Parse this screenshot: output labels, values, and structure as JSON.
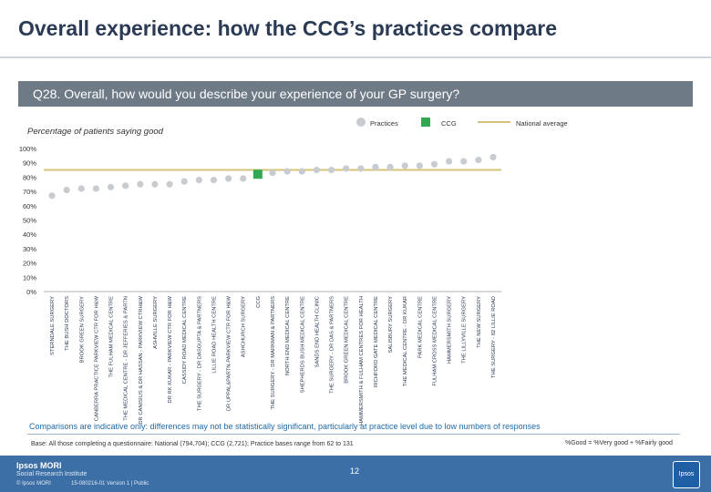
{
  "header": {
    "title": "Overall experience: how the CCG’s practices compare",
    "question": "Q28. Overall, how would you describe your experience of your GP surgery?"
  },
  "chart_data": {
    "type": "scatter",
    "subtitle": "Percentage of patients saying good",
    "ylim": [
      0,
      100
    ],
    "yticks": [
      "0%",
      "10%",
      "20%",
      "30%",
      "40%",
      "50%",
      "60%",
      "70%",
      "80%",
      "90%",
      "100%"
    ],
    "legend": {
      "practices": "Practices",
      "ccg": "CCG",
      "national": "National average"
    },
    "national_average": 85,
    "categories": [
      "STERNDALE SURGERY",
      "THE BUSH DOCTORS",
      "BROOK GREEN SURGERY",
      "CANBERRA PRACTICE PARKVIEW CTR FOR H&W",
      "THE FULHAM MEDICAL CENTRE",
      "THE MEDICAL CENTRE - DR JEFFERIES & PARTN",
      "DR CANISIUS & DR HASSAN - PARKVIEW CTRH&W",
      "ASHVILLE SURGERY",
      "DR RK KUKAR - PARKVIEW CTR FOR H&W",
      "CASSIDY ROAD MEDICAL CENTRE",
      "THE SURGERY - DR DASGUPTA & PARTNERS",
      "LILLIE ROAD HEALTH CENTRE",
      "DR UPPAL&PARTN-PARKVIEW CTR FOR H&W",
      "ASHCHURCH SURGERY",
      "CCG",
      "THE SURGERY - DR MARKMAN & PARTNERS",
      "NORTH END MEDICAL CENTRE",
      "SHEPHERDS BUSH MEDICAL CENTRE",
      "SANDS END HEALTH CLINIC",
      "THE SURGERY - DR DAS & PARTNERS",
      "BROOK GREEN MEDICAL CENTRE",
      "HAMMERSMITH & FULHAM CENTRES FOR HEALTH",
      "RICHFORD GATE MEDICAL CENTRE",
      "SALISBURY SURGERY",
      "THE MEDICAL CENTRE - DR KUKAR",
      "PARK MEDICAL CENTRE",
      "FULHAM CROSS MEDICAL CENTRE",
      "HAMMERSMITH SURGERY",
      "THE LILLYVILLE SURGERY",
      "THE NEW SURGERY",
      "THE SURGERY - 82 LILLIE ROAD"
    ],
    "values": [
      67,
      71,
      72,
      72,
      73,
      74,
      75,
      75,
      75,
      77,
      78,
      78,
      79,
      79,
      82,
      83,
      84,
      84,
      85,
      85,
      86,
      86,
      87,
      87,
      88,
      88,
      89,
      91,
      91,
      92,
      94
    ],
    "ccg_index": 14,
    "colors": {
      "practice": "#c8ccd0",
      "ccg": "#33a853",
      "national_line": "#d4c47a",
      "axis": "#999999",
      "label": "#2b3a55"
    }
  },
  "notes": {
    "disclaimer": "Comparisons are indicative only: differences may not be statistically significant, particularly at practice level due to low numbers of responses",
    "base": "Base: All those completing a questionnaire: National (794,704); CCG (2,721); Practice bases range from 62 to 131",
    "good_definition": "%Good = %Very good + %Fairly good"
  },
  "footer": {
    "logo": "Ipsos MORI",
    "logo_sub": "Social Research Institute",
    "copyright": "© Ipsos MORI",
    "version": "15-080216-01 Version 1 | Public",
    "page": "12",
    "badge": "Ipsos"
  }
}
